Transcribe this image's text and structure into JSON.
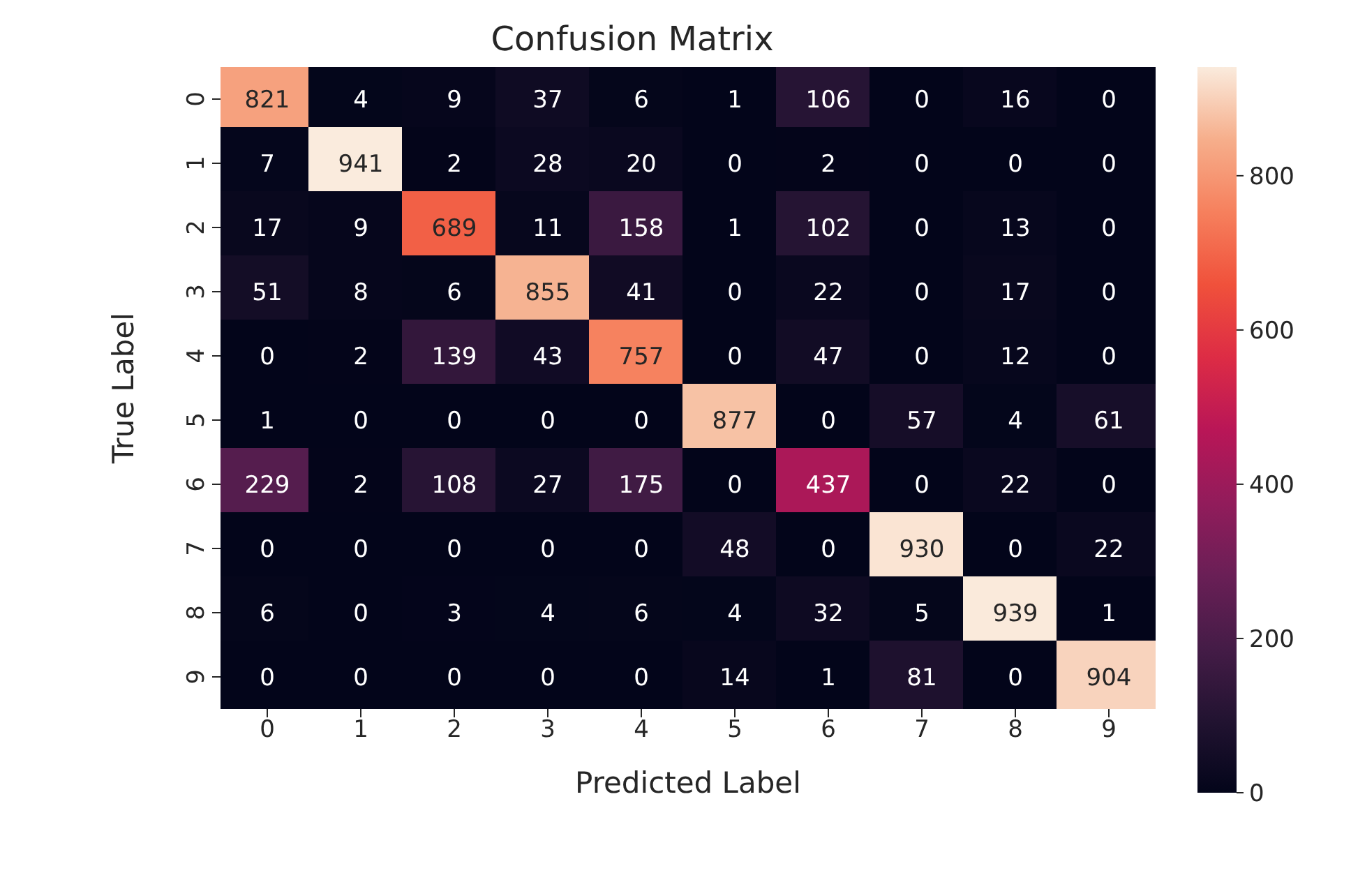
{
  "chart_data": {
    "type": "heatmap",
    "title": "Confusion Matrix",
    "xlabel": "Predicted Label",
    "ylabel": "True Label",
    "categories": [
      "0",
      "1",
      "2",
      "3",
      "4",
      "5",
      "6",
      "7",
      "8",
      "9"
    ],
    "y_categories": [
      "0",
      "1",
      "2",
      "3",
      "4",
      "5",
      "6",
      "7",
      "8",
      "9"
    ],
    "cells": [
      [
        821,
        4,
        9,
        37,
        6,
        1,
        106,
        0,
        16,
        0
      ],
      [
        7,
        941,
        2,
        28,
        20,
        0,
        2,
        0,
        0,
        0
      ],
      [
        17,
        9,
        689,
        11,
        158,
        1,
        102,
        0,
        13,
        0
      ],
      [
        51,
        8,
        6,
        855,
        41,
        0,
        22,
        0,
        17,
        0
      ],
      [
        0,
        2,
        139,
        43,
        757,
        0,
        47,
        0,
        12,
        0
      ],
      [
        1,
        0,
        0,
        0,
        0,
        877,
        0,
        57,
        4,
        61
      ],
      [
        229,
        2,
        108,
        27,
        175,
        0,
        437,
        0,
        22,
        0
      ],
      [
        0,
        0,
        0,
        0,
        0,
        48,
        0,
        930,
        0,
        22
      ],
      [
        6,
        0,
        3,
        4,
        6,
        4,
        32,
        5,
        939,
        1
      ],
      [
        0,
        0,
        0,
        0,
        0,
        14,
        1,
        81,
        0,
        904
      ]
    ],
    "data_labels": true,
    "clim": [
      0,
      941
    ],
    "cticks": [
      0,
      200,
      400,
      600,
      800
    ]
  }
}
